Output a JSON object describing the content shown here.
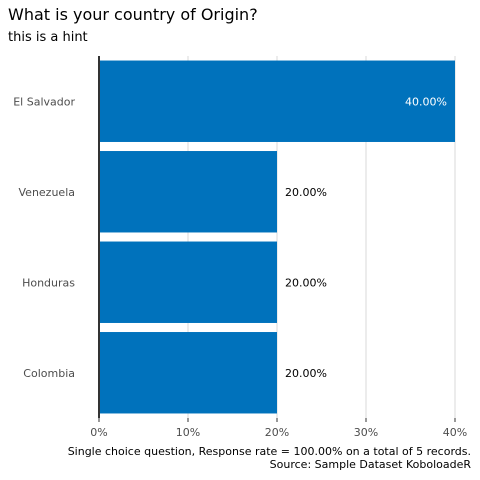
{
  "title": "What is your country of Origin?",
  "subtitle": "this is a hint",
  "caption_line1": "Single choice question, Response rate = 100.00% on a total of 5 records.",
  "caption_line2": "Source: Sample Dataset KoboloadeR",
  "colors": {
    "bar": "#0072BC",
    "grid": "#d9d9d9",
    "axis": "#333333",
    "label_inside": "#ffffff",
    "label_outside": "#000000",
    "tick_text": "#4d4d4d"
  },
  "chart_data": {
    "type": "bar",
    "orientation": "horizontal",
    "categories": [
      "El Salvador",
      "Venezuela",
      "Honduras",
      "Colombia"
    ],
    "values": [
      40,
      20,
      20,
      20
    ],
    "data_labels": [
      "40.00%",
      "20.00%",
      "20.00%",
      "20.00%"
    ],
    "xlim": [
      0,
      40
    ],
    "x_ticks": [
      0,
      10,
      20,
      30,
      40
    ],
    "x_tick_labels": [
      "0%",
      "10%",
      "20%",
      "30%",
      "40%"
    ],
    "grid": true
  }
}
